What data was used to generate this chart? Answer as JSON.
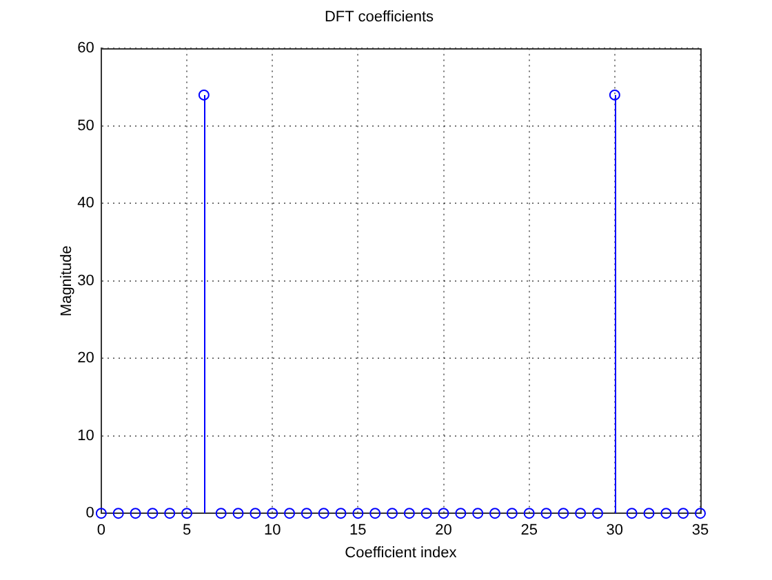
{
  "chart_data": {
    "type": "lollipop",
    "title": "DFT coefficients",
    "xlabel": "Coefficient index",
    "ylabel": "Magnitude",
    "x": [
      0,
      1,
      2,
      3,
      4,
      5,
      6,
      7,
      8,
      9,
      10,
      11,
      12,
      13,
      14,
      15,
      16,
      17,
      18,
      19,
      20,
      21,
      22,
      23,
      24,
      25,
      26,
      27,
      28,
      29,
      30,
      31,
      32,
      33,
      34,
      35
    ],
    "values": [
      0,
      0,
      0,
      0,
      0,
      0,
      54,
      0,
      0,
      0,
      0,
      0,
      0,
      0,
      0,
      0,
      0,
      0,
      0,
      0,
      0,
      0,
      0,
      0,
      0,
      0,
      0,
      0,
      0,
      0,
      54,
      0,
      0,
      0,
      0,
      0
    ],
    "color": "#0000ff",
    "xlim": [
      0,
      35
    ],
    "xticks": [
      0,
      5,
      10,
      15,
      20,
      25,
      30,
      35
    ],
    "ylim": [
      0,
      60
    ],
    "yticks": [
      0,
      10,
      20,
      30,
      40,
      50,
      60
    ],
    "grid": true,
    "legend": false,
    "marker": "circle"
  }
}
